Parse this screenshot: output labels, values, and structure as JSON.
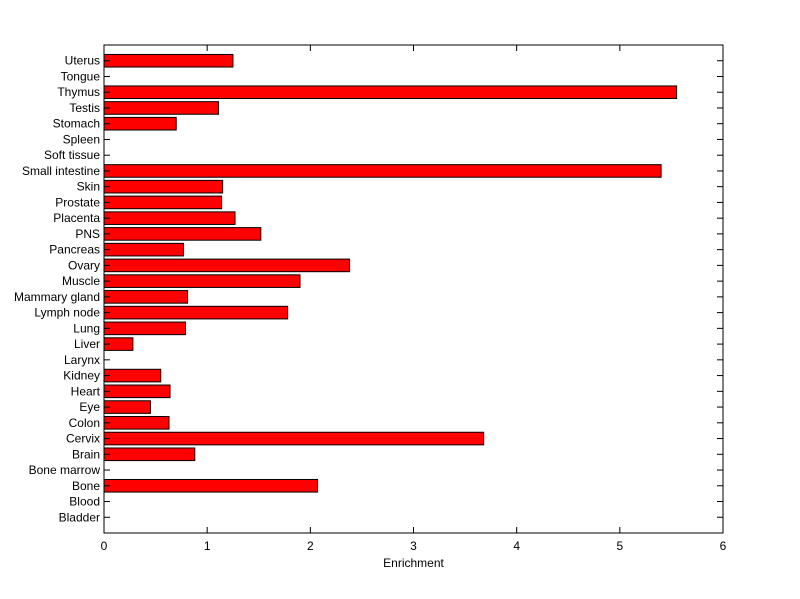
{
  "chart_data": {
    "type": "bar",
    "orientation": "horizontal",
    "title": "",
    "xlabel": "Enrichment",
    "ylabel": "",
    "xlim": [
      0,
      6
    ],
    "xticks": [
      0,
      1,
      2,
      3,
      4,
      5,
      6
    ],
    "grid": false,
    "bar_color": "#ff0000",
    "bar_edge_color": "#000000",
    "categories": [
      "Bladder",
      "Blood",
      "Bone",
      "Bone marrow",
      "Brain",
      "Cervix",
      "Colon",
      "Eye",
      "Heart",
      "Kidney",
      "Larynx",
      "Liver",
      "Lung",
      "Lymph node",
      "Mammary gland",
      "Muscle",
      "Ovary",
      "Pancreas",
      "PNS",
      "Placenta",
      "Prostate",
      "Skin",
      "Small intestine",
      "Soft tissue",
      "Spleen",
      "Stomach",
      "Testis",
      "Thymus",
      "Tongue",
      "Uterus"
    ],
    "values": [
      0,
      0,
      2.07,
      0,
      0.88,
      3.68,
      0.63,
      0.45,
      0.64,
      0.55,
      0,
      0.28,
      0.79,
      1.78,
      0.81,
      1.9,
      2.38,
      0.77,
      1.52,
      1.27,
      1.14,
      1.15,
      5.4,
      0,
      0,
      0.7,
      1.11,
      5.55,
      0,
      1.25
    ]
  }
}
